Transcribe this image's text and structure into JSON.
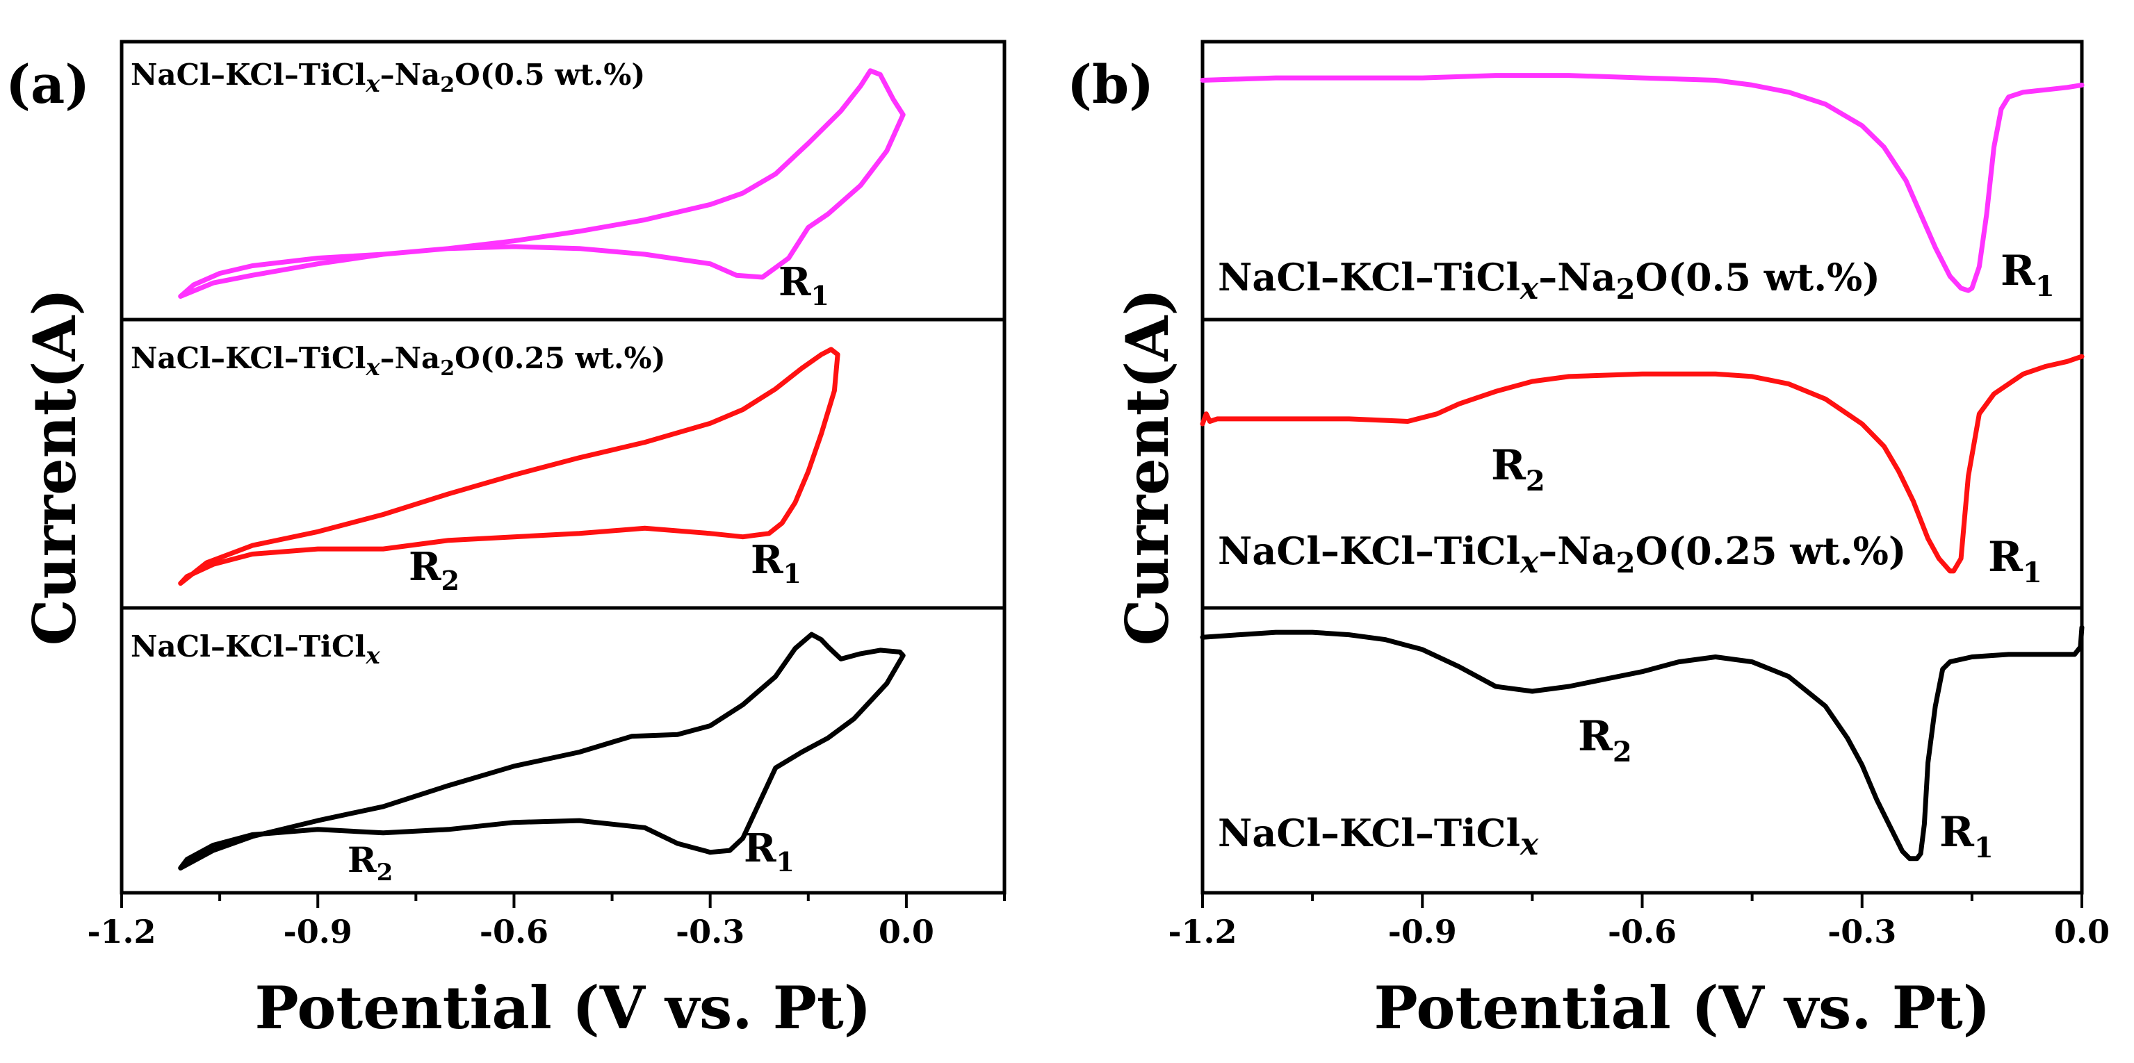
{
  "figure": {
    "ylabel": "Current(A)",
    "xlabel": "Potential (V vs. Pt)"
  },
  "chart_data": [
    {
      "type": "line",
      "panel_label": "(a)",
      "xlabel": "Potential (V vs. Pt)",
      "ylabel": "Current(A)",
      "xlim": [
        -1.2,
        0.15
      ],
      "x_ticks": [
        "-1.2",
        "-0.9",
        "-0.6",
        "-0.3",
        "0.0"
      ],
      "grid": false,
      "subplots": [
        {
          "label_parts": [
            "NaCl–KCl–TiCl",
            "x",
            "–Na",
            "2",
            "O(0.5 wt.%)"
          ],
          "color": "#ff33ff",
          "peaks": [
            {
              "base": "R",
              "sub": "1"
            }
          ],
          "series": [
            {
              "x": [
                -1.11,
                -1.06,
                -1.0,
                -0.9,
                -0.8,
                -0.7,
                -0.6,
                -0.5,
                -0.4,
                -0.3,
                -0.25,
                -0.2,
                -0.15,
                -0.1,
                -0.07,
                -0.055,
                -0.04,
                -0.02,
                -0.005,
                -0.03,
                -0.07,
                -0.12,
                -0.15,
                -0.18,
                -0.22,
                -0.26,
                -0.3,
                -0.4,
                -0.5,
                -0.6,
                -0.7,
                -0.8,
                -0.9,
                -1.0,
                -1.05,
                -1.09,
                -1.11
              ],
              "y": [
                0.02,
                0.09,
                0.13,
                0.19,
                0.24,
                0.27,
                0.31,
                0.36,
                0.42,
                0.5,
                0.56,
                0.66,
                0.82,
                0.99,
                1.12,
                1.2,
                1.18,
                1.05,
                0.97,
                0.78,
                0.6,
                0.45,
                0.38,
                0.22,
                0.12,
                0.13,
                0.19,
                0.24,
                0.27,
                0.28,
                0.27,
                0.24,
                0.22,
                0.18,
                0.14,
                0.08,
                0.02
              ]
            }
          ]
        },
        {
          "label_parts": [
            "NaCl–KCl–TiCl",
            "x",
            "–Na",
            "2",
            "O(0.25 wt.%)"
          ],
          "color": "#ff1111",
          "peaks": [
            {
              "base": "R",
              "sub": "2"
            },
            {
              "base": "R",
              "sub": "1"
            }
          ],
          "series": [
            {
              "x": [
                -1.11,
                -1.07,
                -1.0,
                -0.9,
                -0.8,
                -0.7,
                -0.6,
                -0.5,
                -0.4,
                -0.3,
                -0.25,
                -0.2,
                -0.16,
                -0.13,
                -0.115,
                -0.105,
                -0.11,
                -0.13,
                -0.15,
                -0.17,
                -0.19,
                -0.21,
                -0.23,
                -0.25,
                -0.3,
                -0.4,
                -0.5,
                -0.6,
                -0.7,
                -0.8,
                -0.9,
                -1.0,
                -1.06,
                -1.1,
                -1.11
              ],
              "y": [
                0.03,
                0.15,
                0.25,
                0.33,
                0.43,
                0.55,
                0.66,
                0.76,
                0.85,
                0.96,
                1.04,
                1.16,
                1.28,
                1.36,
                1.39,
                1.36,
                1.15,
                0.9,
                0.68,
                0.5,
                0.38,
                0.32,
                0.31,
                0.3,
                0.32,
                0.35,
                0.32,
                0.3,
                0.28,
                0.23,
                0.23,
                0.2,
                0.14,
                0.07,
                0.03
              ]
            }
          ]
        },
        {
          "label_parts": [
            "NaCl–KCl–TiCl",
            "x"
          ],
          "color": "#000000",
          "peaks": [
            {
              "base": "R",
              "sub": "2"
            },
            {
              "base": "R",
              "sub": "1"
            }
          ],
          "series": [
            {
              "x": [
                -1.11,
                -1.06,
                -1.0,
                -0.9,
                -0.8,
                -0.7,
                -0.6,
                -0.5,
                -0.42,
                -0.35,
                -0.3,
                -0.25,
                -0.2,
                -0.17,
                -0.145,
                -0.13,
                -0.12,
                -0.1,
                -0.07,
                -0.04,
                -0.01,
                -0.005,
                -0.03,
                -0.08,
                -0.12,
                -0.16,
                -0.2,
                -0.22,
                -0.25,
                -0.27,
                -0.3,
                -0.35,
                -0.4,
                -0.5,
                -0.6,
                -0.7,
                -0.8,
                -0.9,
                -1.0,
                -1.06,
                -1.1,
                -1.11
              ],
              "y": [
                0.03,
                0.13,
                0.21,
                0.3,
                0.38,
                0.5,
                0.61,
                0.69,
                0.78,
                0.79,
                0.84,
                0.96,
                1.12,
                1.28,
                1.36,
                1.33,
                1.29,
                1.22,
                1.25,
                1.27,
                1.26,
                1.24,
                1.08,
                0.88,
                0.77,
                0.69,
                0.6,
                0.44,
                0.2,
                0.13,
                0.12,
                0.17,
                0.26,
                0.3,
                0.29,
                0.25,
                0.23,
                0.25,
                0.22,
                0.16,
                0.08,
                0.03
              ]
            }
          ]
        }
      ]
    },
    {
      "type": "line",
      "panel_label": "(b)",
      "xlabel": "Potential (V vs. Pt)",
      "ylabel": "Current(A)",
      "xlim": [
        -1.2,
        0.0
      ],
      "x_ticks": [
        "-1.2",
        "-0.9",
        "-0.6",
        "-0.3",
        "0.0"
      ],
      "grid": false,
      "subplots": [
        {
          "label_parts": [
            "NaCl–KCl–TiCl",
            "x",
            "–Na",
            "2",
            "O(0.5 wt.%)"
          ],
          "color": "#ff33ff",
          "peaks": [
            {
              "base": "R",
              "sub": "1"
            }
          ],
          "series": [
            {
              "x": [
                -1.2,
                -1.1,
                -1.0,
                -0.9,
                -0.8,
                -0.7,
                -0.6,
                -0.5,
                -0.45,
                -0.4,
                -0.35,
                -0.3,
                -0.27,
                -0.24,
                -0.22,
                -0.2,
                -0.18,
                -0.165,
                -0.155,
                -0.15,
                -0.14,
                -0.13,
                -0.12,
                -0.11,
                -0.1,
                -0.08,
                -0.05,
                -0.02,
                0.0
              ],
              "y": [
                0.92,
                0.93,
                0.93,
                0.93,
                0.94,
                0.94,
                0.93,
                0.92,
                0.9,
                0.87,
                0.82,
                0.73,
                0.64,
                0.5,
                0.36,
                0.22,
                0.1,
                0.05,
                0.04,
                0.05,
                0.14,
                0.36,
                0.64,
                0.8,
                0.85,
                0.87,
                0.88,
                0.89,
                0.9
              ]
            }
          ]
        },
        {
          "label_parts": [
            "NaCl–KCl–TiCl",
            "x",
            "–Na",
            "2",
            "O(0.25 wt.%)"
          ],
          "color": "#ff1111",
          "peaks": [
            {
              "base": "R",
              "sub": "2"
            },
            {
              "base": "R",
              "sub": "1"
            }
          ],
          "series": [
            {
              "x": [
                -1.2,
                -1.195,
                -1.19,
                -1.18,
                -1.1,
                -1.0,
                -0.92,
                -0.88,
                -0.85,
                -0.8,
                -0.75,
                -0.7,
                -0.6,
                -0.5,
                -0.45,
                -0.4,
                -0.35,
                -0.3,
                -0.27,
                -0.25,
                -0.23,
                -0.21,
                -0.195,
                -0.18,
                -0.175,
                -0.165,
                -0.155,
                -0.14,
                -0.12,
                -0.1,
                -0.08,
                -0.05,
                -0.02,
                0.0
              ],
              "y": [
                0.66,
                0.7,
                0.67,
                0.68,
                0.68,
                0.68,
                0.67,
                0.7,
                0.74,
                0.79,
                0.83,
                0.85,
                0.86,
                0.86,
                0.85,
                0.82,
                0.76,
                0.66,
                0.57,
                0.47,
                0.35,
                0.2,
                0.12,
                0.07,
                0.07,
                0.12,
                0.45,
                0.7,
                0.78,
                0.82,
                0.86,
                0.89,
                0.91,
                0.93
              ]
            }
          ]
        },
        {
          "label_parts": [
            "NaCl–KCl–TiCl",
            "x"
          ],
          "color": "#000000",
          "peaks": [
            {
              "base": "R",
              "sub": "2"
            },
            {
              "base": "R",
              "sub": "1"
            }
          ],
          "series": [
            {
              "x": [
                -1.2,
                -1.15,
                -1.1,
                -1.05,
                -1.0,
                -0.95,
                -0.9,
                -0.85,
                -0.8,
                -0.75,
                -0.7,
                -0.65,
                -0.6,
                -0.55,
                -0.5,
                -0.45,
                -0.4,
                -0.35,
                -0.32,
                -0.3,
                -0.28,
                -0.26,
                -0.245,
                -0.235,
                -0.225,
                -0.22,
                -0.215,
                -0.21,
                -0.2,
                -0.19,
                -0.18,
                -0.15,
                -0.1,
                -0.05,
                -0.01,
                -0.002,
                0.0
              ],
              "y": [
                0.96,
                0.97,
                0.98,
                0.98,
                0.97,
                0.95,
                0.91,
                0.84,
                0.76,
                0.74,
                0.76,
                0.79,
                0.82,
                0.86,
                0.88,
                0.86,
                0.8,
                0.68,
                0.55,
                0.44,
                0.3,
                0.18,
                0.09,
                0.06,
                0.06,
                0.08,
                0.2,
                0.45,
                0.68,
                0.83,
                0.86,
                0.88,
                0.89,
                0.89,
                0.89,
                0.92,
                1.0
              ]
            }
          ]
        }
      ]
    }
  ]
}
